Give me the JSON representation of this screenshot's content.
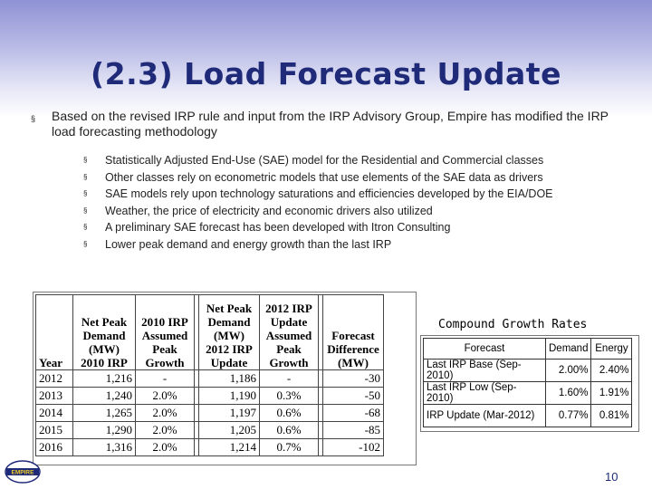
{
  "slide": {
    "title": "(2.3) Load Forecast Update",
    "bullet_main": "Based on the revised IRP rule and input from the IRP Advisory Group, Empire has modified the IRP load forecasting methodology",
    "sub_bullets": [
      "Statistically Adjusted End-Use (SAE) model for the Residential and Commercial classes",
      "Other classes rely on econometric models that use elements of the SAE data as drivers",
      "SAE models rely upon technology saturations and efficiencies developed by the EIA/DOE",
      "Weather, the price of electricity and economic drivers also utilized",
      "A preliminary SAE forecast has been developed with Itron Consulting",
      "Lower peak demand and energy growth than the last IRP"
    ],
    "bullet_glyph": "§",
    "page_number": "10",
    "logo_text": "EMPIRE"
  },
  "table_main": {
    "headers": [
      "Year",
      "Net Peak Demand (MW) 2010 IRP",
      "2010 IRP Assumed Peak Growth",
      "Net Peak Demand (MW) 2012 IRP Update",
      "2012 IRP Update Assumed Peak Growth",
      "Forecast Difference (MW)"
    ],
    "rows": [
      [
        "2012",
        "1,216",
        "-",
        "1,186",
        "-",
        "-30"
      ],
      [
        "2013",
        "1,240",
        "2.0%",
        "1,190",
        "0.3%",
        "-50"
      ],
      [
        "2014",
        "1,265",
        "2.0%",
        "1,197",
        "0.6%",
        "-68"
      ],
      [
        "2015",
        "1,290",
        "2.0%",
        "1,205",
        "0.6%",
        "-85"
      ],
      [
        "2016",
        "1,316",
        "2.0%",
        "1,214",
        "0.7%",
        "-102"
      ]
    ]
  },
  "table_cgr": {
    "title": "Compound Growth Rates",
    "headers": [
      "Forecast",
      "Demand",
      "Energy"
    ],
    "rows": [
      [
        "Last IRP Base (Sep-2010)",
        "2.00%",
        "2.40%"
      ],
      [
        "Last IRP Low (Sep-2010)",
        "1.60%",
        "1.91%"
      ],
      [
        "IRP Update (Mar-2012)",
        "0.77%",
        "0.81%"
      ]
    ]
  }
}
